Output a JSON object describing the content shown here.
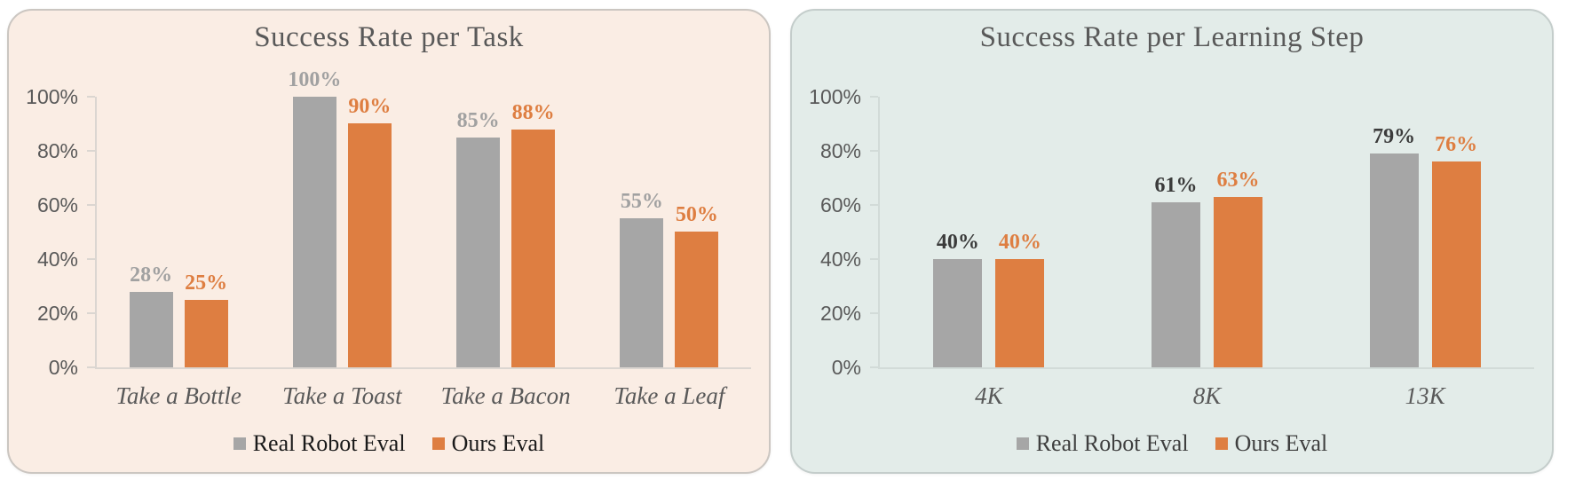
{
  "figure": {
    "background": "#FFFFFF"
  },
  "chart_data": [
    {
      "type": "bar",
      "title": "Success Rate per Task",
      "categories": [
        "Take a Bottle",
        "Take a Toast",
        "Take a Bacon",
        "Take a Leaf"
      ],
      "series": [
        {
          "name": "Real Robot Eval",
          "values": [
            28,
            100,
            85,
            55
          ],
          "bar_color": "#A6A6A6",
          "data_label_color": "#A1A1A1"
        },
        {
          "name": "Ours Eval",
          "values": [
            25,
            90,
            88,
            50
          ],
          "bar_color": "#DE7E41",
          "data_label_color": "#DE7E41"
        }
      ],
      "value_suffix": "%",
      "ylim": [
        0,
        100
      ],
      "y_tick_labels": [
        "0%",
        "20%",
        "40%",
        "60%",
        "80%",
        "100%"
      ],
      "grid": false,
      "legend_position": "bottom",
      "panel_bg": "#FAEDE4",
      "panel_border": "#CBC6C1",
      "title_color": "#595959",
      "axis_line_color": "#DBD6D1",
      "tick_label_color": "#595959",
      "category_label_color": "#595959",
      "legend_text_color": "#1A1A1A"
    },
    {
      "type": "bar",
      "title": "Success Rate per Learning Step",
      "categories": [
        "4K",
        "8K",
        "13K"
      ],
      "series": [
        {
          "name": "Real Robot Eval",
          "values": [
            40,
            61,
            79
          ],
          "bar_color": "#A6A6A6",
          "data_label_color": "#3B3B3B"
        },
        {
          "name": "Ours Eval",
          "values": [
            40,
            63,
            76
          ],
          "bar_color": "#DE7E41",
          "data_label_color": "#DE7E41"
        }
      ],
      "value_suffix": "%",
      "ylim": [
        0,
        100
      ],
      "y_tick_labels": [
        "0%",
        "20%",
        "40%",
        "60%",
        "80%",
        "100%"
      ],
      "grid": false,
      "legend_position": "bottom",
      "panel_bg": "#E3ECE9",
      "panel_border": "#C4CDCB",
      "title_color": "#595959",
      "axis_line_color": "#D2DBD8",
      "tick_label_color": "#595959",
      "category_label_color": "#595959",
      "legend_text_color": "#3F3F3F"
    }
  ]
}
